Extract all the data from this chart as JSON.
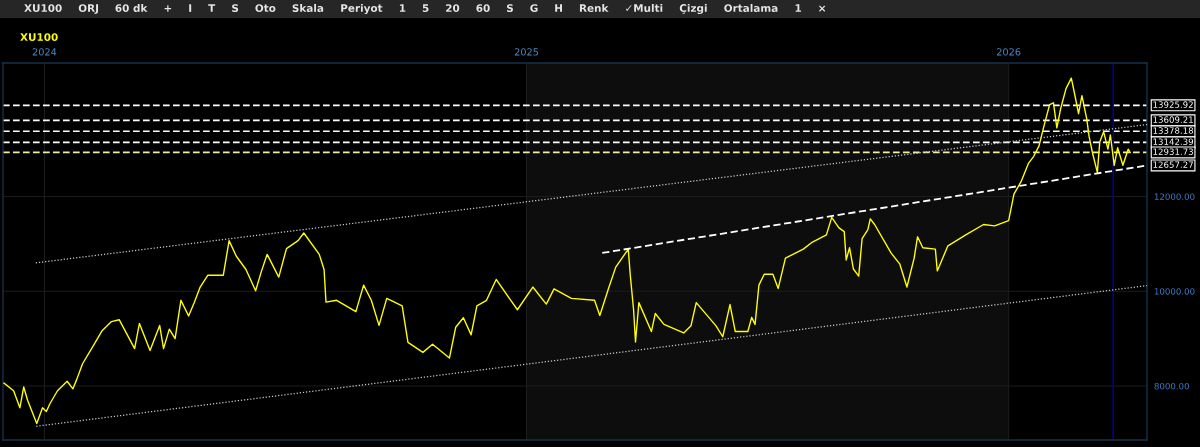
{
  "chart_data": {
    "type": "line",
    "title": "XU100",
    "annotations": [
      "XU100",
      "ORJ",
      "60 dk",
      "+",
      "I",
      "T",
      "S",
      "Oto",
      "Skala",
      "Periyot",
      "1",
      "5",
      "20",
      "60",
      "S",
      "G",
      "H",
      "Renk",
      "✓Multi",
      "Çizgi",
      "Ortalama",
      "1",
      "×",
      {
        "text": "12657.27",
        "x": 2026.287,
        "y": 12657.27
      }
    ],
    "series": [
      {
        "type": "line",
        "color": "#ffff00",
        "line_style": "solid",
        "x": [
          2023.916,
          2023.936,
          2023.949,
          2023.957,
          2023.965,
          2023.984,
          2023.996,
          2024.004,
          2024.011,
          2024.027,
          2024.047,
          2024.059,
          2024.067,
          2024.079,
          2024.103,
          2024.119,
          2024.139,
          2024.155,
          2024.187,
          2024.197,
          2024.219,
          2024.239,
          2024.247,
          2024.259,
          2024.271,
          2024.283,
          2024.299,
          2024.311,
          2024.323,
          2024.339,
          2024.371,
          2024.383,
          2024.398,
          2024.418,
          2024.438,
          2024.45,
          2024.462,
          2024.486,
          2024.502,
          2024.526,
          2024.538,
          2024.57,
          2024.58,
          2024.584,
          2024.606,
          2024.646,
          2024.662,
          2024.678,
          2024.694,
          2024.71,
          2024.742,
          2024.754,
          2024.785,
          2024.805,
          2024.84,
          2024.853,
          2024.869,
          2024.885,
          2024.897,
          2024.917,
          2024.937,
          2024.981,
          2025.013,
          2025.041,
          2025.057,
          2025.093,
          2025.141,
          2025.152,
          2025.17,
          2025.185,
          2025.211,
          2025.215,
          2025.222,
          2025.226,
          2025.233,
          2025.259,
          2025.267,
          2025.285,
          2025.326,
          2025.341,
          2025.352,
          2025.393,
          2025.407,
          2025.422,
          2025.433,
          2025.459,
          2025.467,
          2025.474,
          2025.482,
          2025.493,
          2025.511,
          2025.522,
          2025.537,
          2025.574,
          2025.593,
          2025.622,
          2025.633,
          2025.648,
          2025.659,
          2025.663,
          2025.67,
          2025.678,
          2025.689,
          2025.696,
          2025.708,
          2025.713,
          2025.722,
          2025.756,
          2025.774,
          2025.789,
          2025.804,
          2025.811,
          2025.822,
          2025.848,
          2025.852,
          2025.874,
          2025.911,
          2025.948,
          2025.971,
          2026.0,
          2026.011,
          2026.026,
          2026.041,
          2026.052,
          2026.063,
          2026.074,
          2026.085,
          2026.093,
          2026.1,
          2026.108,
          2026.119,
          2026.13,
          2026.137,
          2026.145,
          2026.152,
          2026.162,
          2026.167,
          2026.174,
          2026.184,
          2026.189,
          2026.197,
          2026.206,
          2026.211,
          2026.219,
          2026.226,
          2026.237,
          2026.248,
          2026.252
        ],
        "values": [
          8060,
          7900,
          7540,
          7980,
          7700,
          7210,
          7540,
          7460,
          7620,
          7900,
          8100,
          7940,
          8140,
          8470,
          8880,
          9160,
          9360,
          9400,
          8790,
          9320,
          8750,
          9280,
          8790,
          9200,
          9000,
          9810,
          9480,
          9770,
          10090,
          10340,
          10340,
          11070,
          10740,
          10460,
          10010,
          10420,
          10780,
          10300,
          10900,
          11070,
          11230,
          10780,
          10460,
          9770,
          9810,
          9570,
          10130,
          9810,
          9280,
          9850,
          9690,
          8920,
          8710,
          8880,
          8590,
          9240,
          9440,
          9080,
          9690,
          9810,
          10250,
          9610,
          10090,
          9730,
          10050,
          9850,
          9810,
          9490,
          10060,
          10510,
          10890,
          10360,
          9610,
          8930,
          9760,
          9150,
          9530,
          9300,
          9120,
          9270,
          9760,
          9270,
          9040,
          9720,
          9150,
          9150,
          9450,
          9300,
          10130,
          10360,
          10360,
          10060,
          10700,
          10890,
          11040,
          11190,
          11560,
          11340,
          11260,
          10660,
          10920,
          10470,
          10320,
          11110,
          11300,
          11530,
          11410,
          10810,
          10580,
          10090,
          10700,
          11150,
          10920,
          10890,
          10430,
          10960,
          11190,
          11410,
          11380,
          11490,
          12050,
          12320,
          12700,
          12850,
          13070,
          13520,
          13940,
          13980,
          13450,
          13860,
          14280,
          14500,
          14160,
          13750,
          14130,
          13640,
          13260,
          12920,
          12510,
          13150,
          13370,
          13000,
          13300,
          12660,
          13030,
          12660,
          13000,
          12930
        ]
      },
      {
        "type": "line",
        "color": "#c8c8c8",
        "line_style": "dotted",
        "x": [
          2023.982,
          2026.287
        ],
        "values": [
          10600,
          13520
        ]
      },
      {
        "type": "line",
        "color": "#c8c8c8",
        "line_style": "dotted",
        "x": [
          2023.983,
          2026.287
        ],
        "values": [
          7150,
          10120
        ]
      },
      {
        "type": "line",
        "color": "#ffffff",
        "line_style": "dashed",
        "x": [
          2025.157,
          2026.287
        ],
        "values": [
          10810,
          12657.27
        ]
      }
    ],
    "xlim": [
      2023.914,
      2026.287
    ],
    "xticks": [
      2024,
      2025,
      2026
    ],
    "ylim": [
      6860,
      14820
    ],
    "yticks": [
      {
        "value": 8000,
        "label": "8000.00"
      },
      {
        "value": 10000,
        "label": "10000.00"
      },
      {
        "value": 12000,
        "label": "12000.00"
      }
    ],
    "grid": true,
    "bands": [
      {
        "axis": "x",
        "from": 2025,
        "to": 2026,
        "color": "#0d0d0d"
      }
    ],
    "ref_lines": [
      {
        "axis": "y",
        "value": 13925.92,
        "label": "13925.92",
        "color": "#ffffff",
        "line_style": "dashed"
      },
      {
        "axis": "y",
        "value": 13609.21,
        "label": "13609.21",
        "color": "#ffffff",
        "line_style": "dashed"
      },
      {
        "axis": "y",
        "value": 13378.18,
        "label": "13378.18",
        "color": "#ffffff",
        "line_style": "dashed"
      },
      {
        "axis": "y",
        "value": 13142.39,
        "label": "13142.39",
        "color": "#ffffff",
        "line_style": "dashed"
      },
      {
        "axis": "y",
        "value": 12931.73,
        "label": "12931.73",
        "color": "#f0f0a0",
        "line_style": "dashed"
      },
      {
        "axis": "x",
        "value": 2026.217,
        "color": "#0000b0",
        "line_style": "solid"
      }
    ]
  }
}
